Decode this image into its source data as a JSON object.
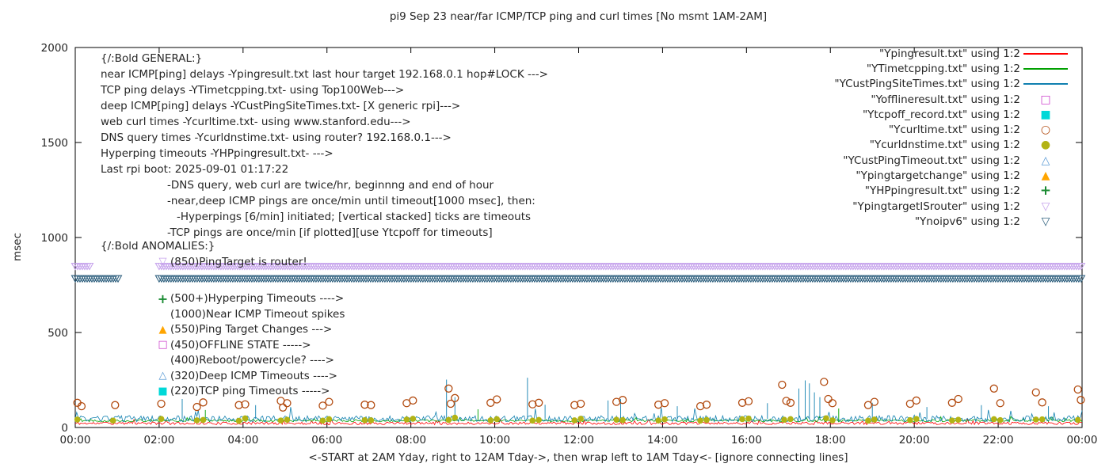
{
  "chart_data": {
    "type": "mixed-time-series",
    "title": "pi9 Sep 23  near/far ICMP/TCP ping and curl times [No msmt 1AM-2AM]",
    "ylabel": "msec",
    "xlabel": "<-START at 2AM Yday, right to 12AM Tday->, then wrap left to 1AM Tday<- [ignore connecting lines]",
    "ylim": [
      0,
      2000
    ],
    "xlim_hours": [
      0,
      24
    ],
    "yticks": [
      0,
      500,
      1000,
      1500,
      2000
    ],
    "xtick_hours": [
      0,
      2,
      4,
      6,
      8,
      10,
      12,
      14,
      16,
      18,
      20,
      22,
      24
    ],
    "xtick_labels": [
      "00:00",
      "02:00",
      "04:00",
      "06:00",
      "08:00",
      "10:00",
      "12:00",
      "14:00",
      "16:00",
      "18:00",
      "20:00",
      "22:00",
      "00:00"
    ],
    "no_measurement_window": "1AM-2AM",
    "grid": false,
    "legend_position": "inside top right",
    "bands": [
      {
        "name": "YpingtargetISrouter",
        "value": 850,
        "color": "#c6a3ec",
        "marker": "triangle-down-open",
        "segments_hours": [
          [
            0,
            0.35
          ],
          [
            2.0,
            24
          ]
        ]
      },
      {
        "name": "Ynoipv6",
        "value": 785,
        "color": "#30617f",
        "marker": "triangle-down-open",
        "segments_hours": [
          [
            0,
            1.02
          ],
          [
            2.0,
            24
          ]
        ]
      }
    ],
    "lines": [
      {
        "name": "Ypingresult",
        "color": "#ff0000",
        "baseline": 22,
        "noise": 7,
        "seed": 11,
        "spikes": []
      },
      {
        "name": "YTimetcpping",
        "color": "#00a000",
        "baseline": 36,
        "noise": 6,
        "seed": 22,
        "spikes": [
          [
            3.1,
            92
          ],
          [
            9.6,
            96
          ],
          [
            18.2,
            100
          ]
        ]
      },
      {
        "name": "YCustPingSiteTimes",
        "color": "#1080b0",
        "baseline": 46,
        "noise": 16,
        "seed": 33,
        "spikes": [
          [
            2.55,
            150
          ],
          [
            4.3,
            118
          ],
          [
            8.85,
            252
          ],
          [
            9.05,
            160
          ],
          [
            10.78,
            262
          ],
          [
            11.2,
            120
          ],
          [
            12.7,
            142
          ],
          [
            13.0,
            150
          ],
          [
            14.35,
            112
          ],
          [
            16.5,
            128
          ],
          [
            17.25,
            205
          ],
          [
            17.4,
            248
          ],
          [
            17.5,
            232
          ],
          [
            17.62,
            185
          ],
          [
            17.75,
            160
          ],
          [
            19.0,
            130
          ],
          [
            20.3,
            108
          ],
          [
            21.6,
            118
          ],
          [
            23.2,
            112
          ]
        ]
      }
    ],
    "scatter": [
      {
        "name": "Ycurltime",
        "marker": "circle-open",
        "color": "#b24b10",
        "points": [
          [
            0.05,
            130
          ],
          [
            0.15,
            112
          ],
          [
            0.95,
            118
          ],
          [
            2.05,
            125
          ],
          [
            2.9,
            108
          ],
          [
            3.05,
            132
          ],
          [
            3.9,
            118
          ],
          [
            4.05,
            122
          ],
          [
            4.9,
            140
          ],
          [
            4.95,
            105
          ],
          [
            5.05,
            128
          ],
          [
            5.9,
            115
          ],
          [
            6.05,
            135
          ],
          [
            6.9,
            120
          ],
          [
            7.05,
            118
          ],
          [
            7.9,
            128
          ],
          [
            8.05,
            142
          ],
          [
            8.9,
            205
          ],
          [
            8.95,
            125
          ],
          [
            9.05,
            155
          ],
          [
            9.9,
            130
          ],
          [
            10.05,
            148
          ],
          [
            10.9,
            122
          ],
          [
            11.05,
            130
          ],
          [
            11.9,
            118
          ],
          [
            12.05,
            125
          ],
          [
            12.9,
            135
          ],
          [
            13.05,
            145
          ],
          [
            13.9,
            120
          ],
          [
            14.05,
            128
          ],
          [
            14.9,
            112
          ],
          [
            15.05,
            120
          ],
          [
            15.9,
            130
          ],
          [
            16.05,
            138
          ],
          [
            16.85,
            225
          ],
          [
            16.95,
            140
          ],
          [
            17.05,
            130
          ],
          [
            17.85,
            240
          ],
          [
            17.95,
            150
          ],
          [
            18.05,
            128
          ],
          [
            18.9,
            118
          ],
          [
            19.05,
            135
          ],
          [
            19.9,
            125
          ],
          [
            20.05,
            142
          ],
          [
            20.9,
            130
          ],
          [
            21.05,
            150
          ],
          [
            21.9,
            205
          ],
          [
            22.05,
            128
          ],
          [
            22.9,
            185
          ],
          [
            23.05,
            132
          ],
          [
            23.9,
            200
          ],
          [
            23.97,
            145
          ]
        ]
      },
      {
        "name": "Ycurldnstime",
        "marker": "circle-filled",
        "color": "#b3b314",
        "points": [
          [
            0.05,
            42
          ],
          [
            0.9,
            36
          ],
          [
            2.05,
            45
          ],
          [
            2.9,
            38
          ],
          [
            3.05,
            40
          ],
          [
            3.9,
            35
          ],
          [
            4.05,
            48
          ],
          [
            4.9,
            37
          ],
          [
            5.05,
            41
          ],
          [
            5.9,
            36
          ],
          [
            6.05,
            44
          ],
          [
            6.9,
            39
          ],
          [
            7.05,
            38
          ],
          [
            7.9,
            42
          ],
          [
            8.05,
            46
          ],
          [
            8.9,
            40
          ],
          [
            9.05,
            52
          ],
          [
            9.9,
            38
          ],
          [
            10.05,
            44
          ],
          [
            10.9,
            36
          ],
          [
            11.05,
            40
          ],
          [
            11.9,
            38
          ],
          [
            12.05,
            46
          ],
          [
            12.9,
            41
          ],
          [
            13.05,
            39
          ],
          [
            13.9,
            37
          ],
          [
            14.05,
            43
          ],
          [
            14.9,
            36
          ],
          [
            15.05,
            40
          ],
          [
            15.9,
            44
          ],
          [
            16.05,
            47
          ],
          [
            16.9,
            41
          ],
          [
            17.05,
            44
          ],
          [
            17.9,
            49
          ],
          [
            18.05,
            38
          ],
          [
            18.9,
            36
          ],
          [
            19.05,
            42
          ],
          [
            19.9,
            39
          ],
          [
            20.05,
            45
          ],
          [
            20.9,
            37
          ],
          [
            21.05,
            41
          ],
          [
            21.9,
            44
          ],
          [
            22.05,
            39
          ],
          [
            22.9,
            42
          ],
          [
            23.05,
            43
          ],
          [
            23.9,
            40
          ]
        ]
      }
    ],
    "legend": [
      {
        "label": "\"Ypingresult.txt\" using 1:2",
        "marker": "line",
        "color": "#ff0000"
      },
      {
        "label": "\"YTimetcpping.txt\" using 1:2",
        "marker": "line",
        "color": "#00a000"
      },
      {
        "label": "\"YCustPingSiteTimes.txt\" using 1:2",
        "marker": "line",
        "color": "#1080b0"
      },
      {
        "label": "\"Yofflineresult.txt\" using 1:2",
        "marker": "square-open",
        "color": "#cc40cc"
      },
      {
        "label": "\"Ytcpoff_record.txt\" using 1:2",
        "marker": "square-filled",
        "color": "#00d8d8"
      },
      {
        "label": "\"Ycurltime.txt\" using 1:2",
        "marker": "circle-open",
        "color": "#b24b10"
      },
      {
        "label": "\"Ycurldnstime.txt\" using 1:2",
        "marker": "circle-filled",
        "color": "#b3b314"
      },
      {
        "label": "\"YCustPingTimeout.txt\" using 1:2",
        "marker": "triangle-up-open",
        "color": "#5b9bd5"
      },
      {
        "label": "\"Ypingtargetchange\" using 1:2",
        "marker": "triangle-up-filled",
        "color": "#ffa500"
      },
      {
        "label": "\"YHPpingresult.txt\" using 1:2",
        "marker": "plus",
        "color": "#188a30"
      },
      {
        "label": "\"YpingtargetISrouter\" using 1:2",
        "marker": "triangle-down-open",
        "color": "#c6a3ec"
      },
      {
        "label": "\"Ynoipv6\" using 1:2",
        "marker": "triangle-down-open",
        "color": "#30617f"
      }
    ]
  },
  "annotations": {
    "general": {
      "lines": [
        {
          "text": "{/:Bold GENERAL:}",
          "indent": 0
        },
        {
          "text": "near ICMP[ping] delays -Ypingresult.txt last hour target 192.168.0.1 hop#LOCK --->",
          "indent": 0
        },
        {
          "text": "TCP ping delays -YTimetcpping.txt- using Top100Web--->",
          "indent": 0
        },
        {
          "text": "deep ICMP[ping] delays -YCustPingSiteTimes.txt- [X generic rpi]--->",
          "indent": 0
        },
        {
          "text": "web curl times -Ycurltime.txt- using www.stanford.edu--->",
          "indent": 0
        },
        {
          "text": "DNS query times -Ycurldnstime.txt- using router? 192.168.0.1--->",
          "indent": 0
        },
        {
          "text": "Hyperping timeouts -YHPpingresult.txt- --->",
          "indent": 0
        },
        {
          "text": "Last rpi boot: 2025-09-01 01:17:22",
          "indent": 0
        },
        {
          "text": "-DNS query, web curl are twice/hr, beginnng and end of hour",
          "indent": 1
        },
        {
          "text": "-near,deep ICMP pings are once/min until timeout[1000 msec], then:",
          "indent": 1
        },
        {
          "text": "-Hyperpings [6/min] initiated; [vertical stacked] ticks are timeouts",
          "indent": 2
        },
        {
          "text": "-TCP pings are once/min [if plotted][use Ytcpoff for timeouts]",
          "indent": 1
        }
      ]
    },
    "anomalies": {
      "header": "{/:Bold ANOMALIES:}",
      "items": [
        {
          "marker": "triangle-down-open",
          "color": "#c6a3ec",
          "text": "(850)PingTarget is router!",
          "gap_after": true
        },
        {
          "marker": "plus",
          "color": "#188a30",
          "text": "(500+)Hyperping Timeouts ---->",
          "gap_after": false
        },
        {
          "marker": null,
          "color": null,
          "text": "(1000)Near ICMP Timeout spikes",
          "gap_after": false
        },
        {
          "marker": "triangle-up-filled",
          "color": "#ffa500",
          "text": "(550)Ping Target Changes --->",
          "gap_after": false
        },
        {
          "marker": "square-open",
          "color": "#cc40cc",
          "text": "(450)OFFLINE STATE ----->",
          "gap_after": false
        },
        {
          "marker": null,
          "color": null,
          "text": "(400)Reboot/powercycle? ---->",
          "gap_after": false
        },
        {
          "marker": "triangle-up-open",
          "color": "#5b9bd5",
          "text": "(320)Deep ICMP Timeouts ---->",
          "gap_after": false
        },
        {
          "marker": "square-filled",
          "color": "#00d8d8",
          "text": "(220)TCP ping Timeouts ----->",
          "gap_after": false
        }
      ]
    }
  }
}
